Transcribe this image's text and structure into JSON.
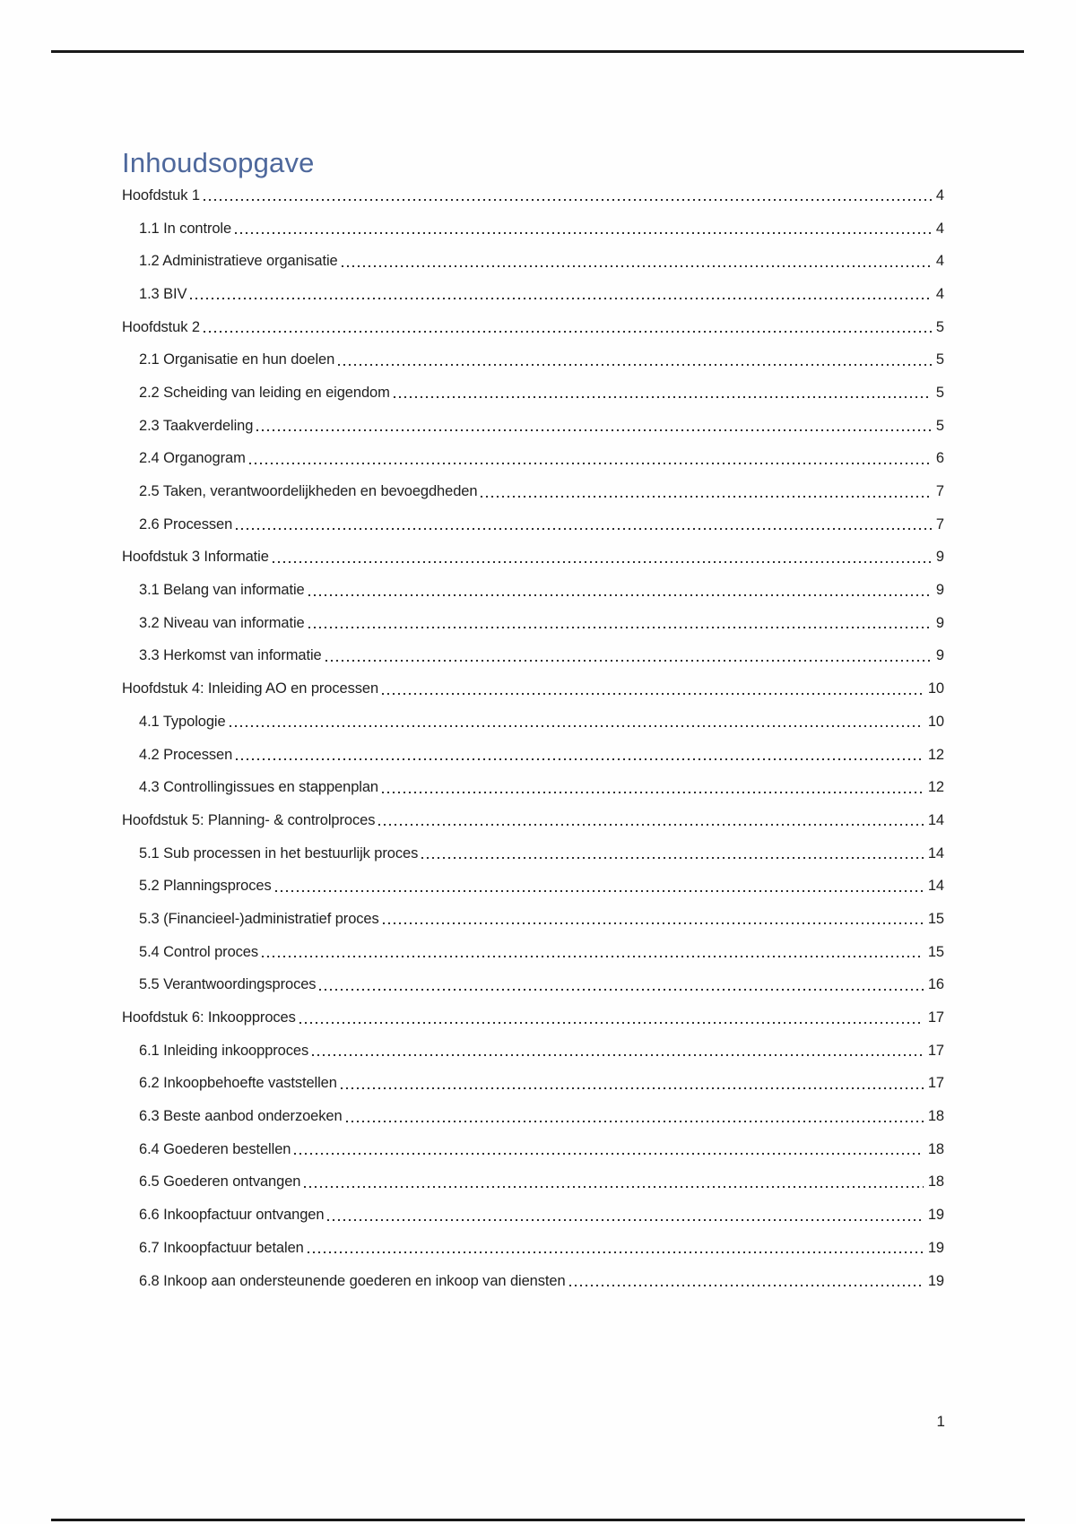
{
  "toc": {
    "title": "Inhoudsopgave",
    "entries": [
      {
        "label": "Hoofdstuk 1",
        "page": "4",
        "level": 0
      },
      {
        "label": "1.1 In controle",
        "page": "4",
        "level": 1
      },
      {
        "label": "1.2 Administratieve organisatie",
        "page": "4",
        "level": 1
      },
      {
        "label": "1.3 BIV",
        "page": "4",
        "level": 1
      },
      {
        "label": "Hoofdstuk 2",
        "page": "5",
        "level": 0
      },
      {
        "label": "2.1 Organisatie en hun doelen",
        "page": "5",
        "level": 1
      },
      {
        "label": "2.2 Scheiding van leiding en eigendom",
        "page": "5",
        "level": 1
      },
      {
        "label": "2.3 Taakverdeling",
        "page": "5",
        "level": 1
      },
      {
        "label": "2.4 Organogram",
        "page": "6",
        "level": 1
      },
      {
        "label": "2.5 Taken, verantwoordelijkheden en bevoegdheden",
        "page": "7",
        "level": 1
      },
      {
        "label": "2.6 Processen",
        "page": "7",
        "level": 1
      },
      {
        "label": "Hoofdstuk 3 Informatie",
        "page": "9",
        "level": 0
      },
      {
        "label": "3.1 Belang van informatie",
        "page": "9",
        "level": 1
      },
      {
        "label": "3.2 Niveau van informatie",
        "page": "9",
        "level": 1
      },
      {
        "label": "3.3 Herkomst van informatie",
        "page": "9",
        "level": 1
      },
      {
        "label": "Hoofdstuk 4: Inleiding AO en processen",
        "page": "10",
        "level": 0
      },
      {
        "label": "4.1 Typologie",
        "page": "10",
        "level": 1
      },
      {
        "label": "4.2 Processen",
        "page": "12",
        "level": 1
      },
      {
        "label": "4.3 Controllingissues en stappenplan",
        "page": "12",
        "level": 1
      },
      {
        "label": "Hoofdstuk 5: Planning- & controlproces",
        "page": "14",
        "level": 0
      },
      {
        "label": "5.1 Sub processen in het bestuurlijk proces",
        "page": "14",
        "level": 1
      },
      {
        "label": "5.2 Planningsproces",
        "page": "14",
        "level": 1
      },
      {
        "label": "5.3 (Financieel-)administratief proces",
        "page": "15",
        "level": 1
      },
      {
        "label": "5.4 Control proces",
        "page": "15",
        "level": 1
      },
      {
        "label": "5.5 Verantwoordingsproces",
        "page": "16",
        "level": 1
      },
      {
        "label": "Hoofdstuk 6: Inkoopproces",
        "page": "17",
        "level": 0
      },
      {
        "label": "6.1 Inleiding inkoopproces",
        "page": "17",
        "level": 1
      },
      {
        "label": "6.2 Inkoopbehoefte vaststellen",
        "page": "17",
        "level": 1
      },
      {
        "label": "6.3 Beste aanbod onderzoeken",
        "page": "18",
        "level": 1
      },
      {
        "label": "6.4 Goederen bestellen",
        "page": "18",
        "level": 1
      },
      {
        "label": "6.5 Goederen ontvangen",
        "page": "18",
        "level": 1
      },
      {
        "label": "6.6 Inkoopfactuur ontvangen",
        "page": "19",
        "level": 1
      },
      {
        "label": "6.7 Inkoopfactuur betalen",
        "page": "19",
        "level": 1
      },
      {
        "label": "6.8 Inkoop aan ondersteunende goederen en inkoop van diensten",
        "page": "19",
        "level": 1
      }
    ]
  },
  "footer": {
    "page_number": "1"
  },
  "colors": {
    "title": "#4e689c",
    "text": "#1e1e1e",
    "leader_dots": "#2e2e2e",
    "rule": "#191919"
  }
}
